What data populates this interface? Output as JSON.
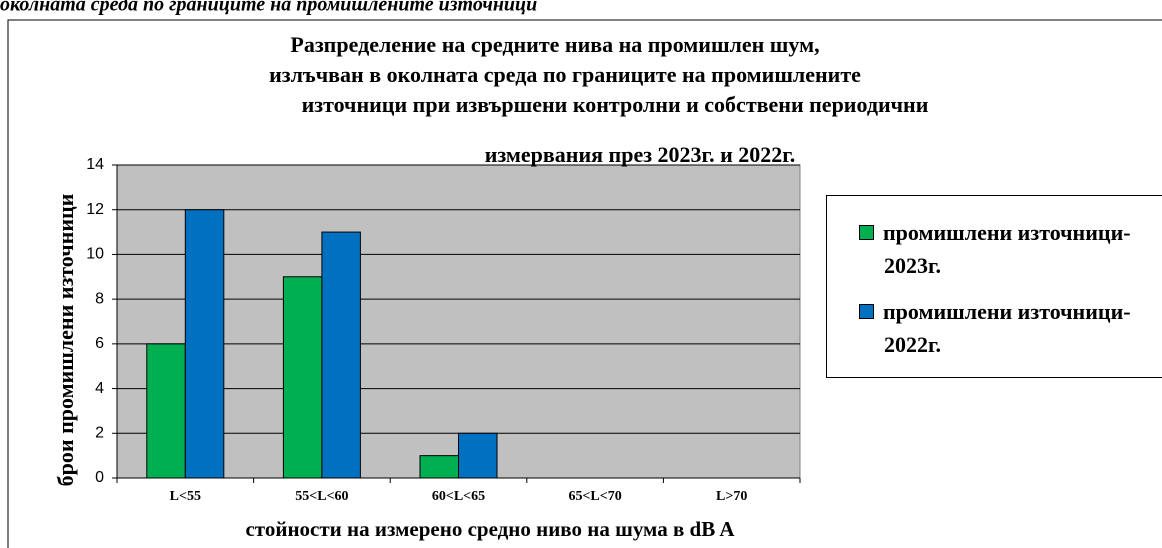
{
  "caption": "околната среда по границите на промишлените източници",
  "chart_data": {
    "type": "bar",
    "title": [
      "Разпределение на средните нива на промишлен шум,",
      "излъчван в околната среда по границите на промишлените",
      "източници при извършени контролни и собствени периодични",
      "измервания  през 2023г. и 2022г."
    ],
    "y_label": "брои  промишлени  източници",
    "x_label": "стойности на измерено средно ниво на шума в dB A",
    "categories": [
      "L<55",
      "55<L<60",
      "60<L<65",
      "65<L<70",
      "L>70"
    ],
    "series": [
      {
        "name": "промишлени източници- 2023г.",
        "color": "#00b050",
        "values": [
          6,
          9,
          1,
          0,
          0
        ]
      },
      {
        "name": "промишлени източници- 2022г.",
        "color": "#0070c0",
        "values": [
          12,
          11,
          2,
          0,
          0
        ]
      }
    ],
    "ylim": [
      0,
      14
    ],
    "yticks": [
      0,
      2,
      4,
      6,
      8,
      10,
      12,
      14
    ],
    "grid": true,
    "legend": "right"
  }
}
